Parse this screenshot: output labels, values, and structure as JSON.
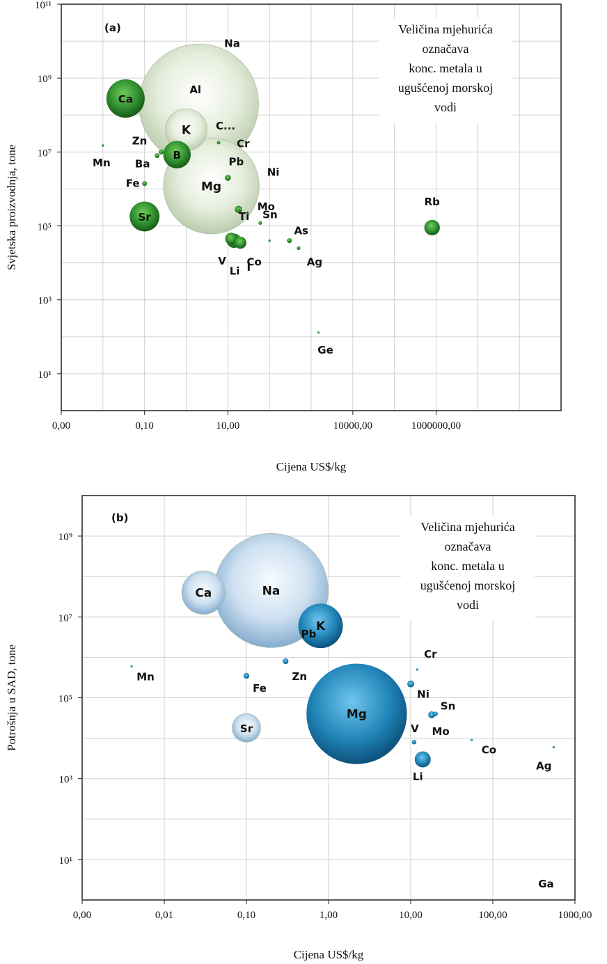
{
  "colors": {
    "green": "#2e8b2e",
    "green_pale": "#dfe9d6",
    "blue": "#1f83b7",
    "blue_pale": "#c5dbee"
  },
  "chart_data": [
    {
      "panel": "(a)",
      "type": "scatter",
      "bubble": true,
      "xlabel": "Cijena US$/kg",
      "ylabel": "Svjetska proizvodnja, tone",
      "xscale": "log",
      "yscale": "log",
      "xlim": [
        0.001,
        1000000000
      ],
      "ylim": [
        1,
        100000000000
      ],
      "x_ticks": [
        "0,00",
        "0,10",
        "10,00",
        "10000,00",
        "1000000,00"
      ],
      "y_ticks": [
        "10¹¹",
        "10⁹",
        "10⁷",
        "10⁵",
        "10³",
        "10¹"
      ],
      "note": [
        "Veličina mjehurića",
        "označava",
        "konc. metala u",
        "ugušćenoj morskoj",
        "vodi"
      ],
      "points": [
        {
          "label": "Na",
          "x": 2.0,
          "y": 200000000,
          "size": 10,
          "style": "pale"
        },
        {
          "label": "Ca",
          "x": 0.035,
          "y": 280000000,
          "size": 3.2,
          "style": "dark"
        },
        {
          "label": "K",
          "x": 1.0,
          "y": 40000000,
          "size": 3.5,
          "style": "pale"
        },
        {
          "label": "Mg",
          "x": 4.0,
          "y": 1200000,
          "size": 8,
          "style": "pale"
        },
        {
          "label": "B",
          "x": 0.6,
          "y": 8500000,
          "size": 2.3,
          "style": "dark"
        },
        {
          "label": "Sr",
          "x": 0.1,
          "y": 180000,
          "size": 2.5,
          "style": "dark"
        },
        {
          "label": "Rb",
          "x": 800000,
          "y": 90000,
          "size": 1.3,
          "style": "dark"
        },
        {
          "label": "Al",
          "x": 1.6,
          "y": 25000000,
          "size": 0,
          "style": "dark"
        },
        {
          "label": "C...",
          "x": 6.0,
          "y": 18000000,
          "size": 0.3,
          "style": "dark"
        },
        {
          "label": "Cr",
          "x": 10.0,
          "y": 10000000,
          "size": 0,
          "style": "dark"
        },
        {
          "label": "Zn",
          "x": 0.25,
          "y": 10000000,
          "size": 0.4,
          "style": "dark"
        },
        {
          "label": "Ba",
          "x": 0.2,
          "y": 8000000,
          "size": 0.4,
          "style": "dark"
        },
        {
          "label": "Mn",
          "x": 0.01,
          "y": 15000000,
          "size": 0.2,
          "style": "dark"
        },
        {
          "label": "Fe",
          "x": 0.1,
          "y": 1400000,
          "size": 0.4,
          "style": "dark"
        },
        {
          "label": "Pb",
          "x": 10.0,
          "y": 2000000,
          "size": 0.5,
          "style": "dark"
        },
        {
          "label": "Ni",
          "x": 18.0,
          "y": 1200000,
          "size": 0,
          "style": "dark"
        },
        {
          "label": "Mo",
          "x": 20.0,
          "y": 280000,
          "size": 0.3,
          "style": "dark"
        },
        {
          "label": "Ti",
          "x": 18.0,
          "y": 280000,
          "size": 0.6,
          "style": "dark"
        },
        {
          "label": "Sn",
          "x": 60.0,
          "y": 120000,
          "size": 0.3,
          "style": "dark"
        },
        {
          "label": "V",
          "x": 12.0,
          "y": 45000,
          "size": 1.0,
          "style": "dark"
        },
        {
          "label": "Li",
          "x": 14.0,
          "y": 40000,
          "size": 1.2,
          "style": "dark"
        },
        {
          "label": "I",
          "x": 20.0,
          "y": 35000,
          "size": 1.0,
          "style": "dark"
        },
        {
          "label": "As",
          "x": 300.0,
          "y": 40000,
          "size": 0.4,
          "style": "dark"
        },
        {
          "label": "Co",
          "x": 100.0,
          "y": 40000,
          "size": 0.2,
          "style": "dark"
        },
        {
          "label": "Ag",
          "x": 500.0,
          "y": 25000,
          "size": 0.3,
          "style": "dark"
        },
        {
          "label": "Ge",
          "x": 1500.0,
          "y": 130,
          "size": 0.1,
          "style": "dark"
        }
      ]
    },
    {
      "panel": "(b)",
      "type": "scatter",
      "bubble": true,
      "xlabel": "Cijena US$/kg",
      "ylabel": "Potrošnja u SAD, tone",
      "xscale": "log",
      "yscale": "log",
      "xlim": [
        0.001,
        1000
      ],
      "ylim": [
        1,
        10000000000
      ],
      "x_ticks": [
        "0,00",
        "0,01",
        "0,10",
        "1,00",
        "10,00",
        "100,00",
        "1000,00"
      ],
      "y_ticks": [
        "10⁹",
        "10⁷",
        "10⁵",
        "10³",
        "10¹"
      ],
      "note": [
        "Veličina mjehurića",
        "označava",
        "konc. metala u",
        "ugušćenoj morskoj",
        "vodi"
      ],
      "points": [
        {
          "label": "Na",
          "x": 0.2,
          "y": 45000000,
          "size": 10,
          "style": "pale"
        },
        {
          "label": "Ca",
          "x": 0.03,
          "y": 40000000,
          "size": 3.8,
          "style": "pale"
        },
        {
          "label": "K",
          "x": 0.8,
          "y": 6000000,
          "size": 3.9,
          "style": "dark"
        },
        {
          "label": "Mg",
          "x": 2.2,
          "y": 40000,
          "size": 8.8,
          "style": "dark"
        },
        {
          "label": "Sr",
          "x": 0.1,
          "y": 18000,
          "size": 2.5,
          "style": "pale"
        },
        {
          "label": "Li",
          "x": 14.0,
          "y": 3000,
          "size": 1.4,
          "style": "dark"
        },
        {
          "label": "Mn",
          "x": 0.004,
          "y": 600000,
          "size": 0.2,
          "style": "dark"
        },
        {
          "label": "Fe",
          "x": 0.1,
          "y": 350000,
          "size": 0.5,
          "style": "dark"
        },
        {
          "label": "Zn",
          "x": 0.3,
          "y": 800000,
          "size": 0.5,
          "style": "dark"
        },
        {
          "label": "Pb",
          "x": 2.0,
          "y": 800000,
          "size": 0,
          "style": "dark"
        },
        {
          "label": "Cr",
          "x": 12.0,
          "y": 500000,
          "size": 0.2,
          "style": "dark"
        },
        {
          "label": "Ni",
          "x": 10.0,
          "y": 220000,
          "size": 0.6,
          "style": "dark"
        },
        {
          "label": "Sn",
          "x": 20.0,
          "y": 40000,
          "size": 0.4,
          "style": "dark"
        },
        {
          "label": "Mo",
          "x": 18.0,
          "y": 38000,
          "size": 0.6,
          "style": "dark"
        },
        {
          "label": "V",
          "x": 11.0,
          "y": 8000,
          "size": 0.4,
          "style": "dark"
        },
        {
          "label": "Co",
          "x": 55.0,
          "y": 9000,
          "size": 0.2,
          "style": "dark"
        },
        {
          "label": "Ag",
          "x": 550.0,
          "y": 6000,
          "size": 0.2,
          "style": "dark"
        },
        {
          "label": "Ga",
          "x": 500.0,
          "y": 10,
          "size": 0,
          "style": "dark"
        }
      ]
    }
  ]
}
